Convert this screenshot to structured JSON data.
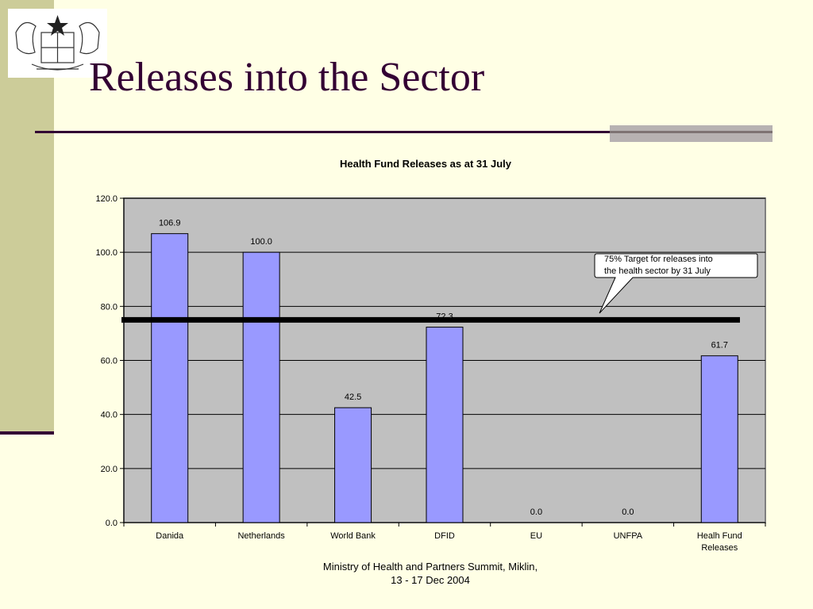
{
  "slide": {
    "title": "Releases into the Sector",
    "footer_line1": "Ministry of Health and Partners Summit, Miklin,",
    "footer_line2": "13 - 17 Dec 2004",
    "logo": "ghana-coat-of-arms-icon",
    "colors": {
      "background": "#FFFFE5",
      "left_band": "#CCCC99",
      "title": "#330033",
      "accent_bar": "#B7B2B2"
    }
  },
  "chart_data": {
    "type": "bar",
    "title": "Health Fund Releases as at 31 July",
    "categories": [
      [
        "Danida"
      ],
      [
        "Netherlands"
      ],
      [
        "World Bank"
      ],
      [
        "DFID"
      ],
      [
        "EU"
      ],
      [
        "UNFPA"
      ],
      [
        "Healh Fund",
        "Releases"
      ]
    ],
    "values": [
      106.9,
      100.0,
      42.5,
      72.3,
      0.0,
      0.0,
      61.7
    ],
    "data_labels": [
      "106.9",
      "100.0",
      "42.5",
      "72.3",
      "0.0",
      "0.0",
      "61.7"
    ],
    "y_ticks": [
      "0.0",
      "20.0",
      "40.0",
      "60.0",
      "80.0",
      "100.0",
      "120.0"
    ],
    "ylim": [
      0,
      120
    ],
    "grid": true,
    "target_value": 75,
    "callout_line1": "75% Target for releases into",
    "callout_line2": "the health sector by 31 July",
    "colors": {
      "bar": "#9999FF",
      "plot_bg": "#C0C0C0",
      "target_line": "#000000"
    }
  }
}
